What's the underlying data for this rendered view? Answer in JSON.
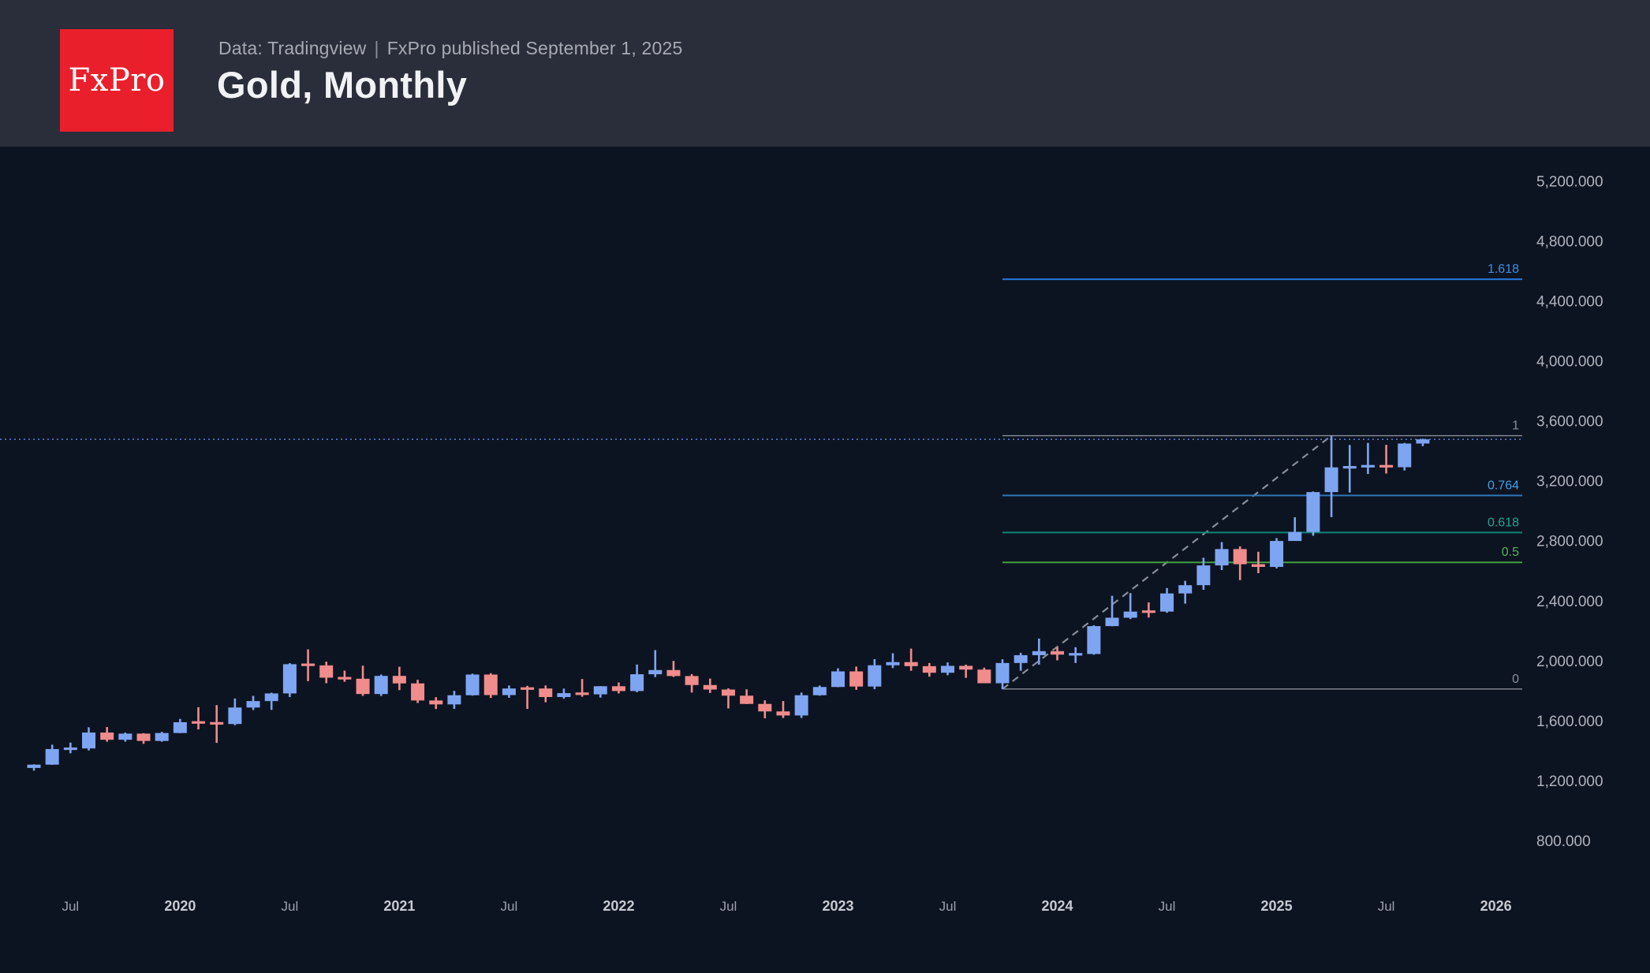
{
  "header": {
    "logo_text": "FxPro",
    "source_label": "Data: Tradingview",
    "separator": "|",
    "published_label": "FxPro published September 1, 2025",
    "title": "Gold, Monthly"
  },
  "chart_data": {
    "type": "candlestick",
    "symbol": "Gold",
    "timeframe": "Monthly",
    "title": "Gold, Monthly",
    "legend_position": "none",
    "grid": false,
    "colors": {
      "background": "#0d1421",
      "up_candle": "#7ea5f2",
      "down_candle": "#f08c8c",
      "y_tick_text": "#b0b3bc",
      "x_month_text": "#9aa0ab",
      "x_year_text": "#c7cad1",
      "trendline": "#8a8e98",
      "price_line": "#5577cc"
    },
    "y_axis": {
      "side": "right",
      "tick_step": 400,
      "ylim": [
        621,
        5428
      ],
      "ticks": [
        {
          "value": 5200,
          "label": "5,200.000"
        },
        {
          "value": 4800,
          "label": "4,800.000"
        },
        {
          "value": 4400,
          "label": "4,400.000"
        },
        {
          "value": 4000,
          "label": "4,000.000"
        },
        {
          "value": 3600,
          "label": "3,600.000"
        },
        {
          "value": 3200,
          "label": "3,200.000"
        },
        {
          "value": 2800,
          "label": "2,800.000"
        },
        {
          "value": 2400,
          "label": "2,400.000"
        },
        {
          "value": 2000,
          "label": "2,000.000"
        },
        {
          "value": 1600,
          "label": "1,600.000"
        },
        {
          "value": 1200,
          "label": "1,200.000"
        },
        {
          "value": 800,
          "label": "800.000"
        }
      ]
    },
    "x_axis": {
      "labels": [
        {
          "index": 2,
          "text": "Jul",
          "emphasis": false
        },
        {
          "index": 8,
          "text": "2020",
          "emphasis": true
        },
        {
          "index": 14,
          "text": "Jul",
          "emphasis": false
        },
        {
          "index": 20,
          "text": "2021",
          "emphasis": true
        },
        {
          "index": 26,
          "text": "Jul",
          "emphasis": false
        },
        {
          "index": 32,
          "text": "2022",
          "emphasis": true
        },
        {
          "index": 38,
          "text": "Jul",
          "emphasis": false
        },
        {
          "index": 44,
          "text": "2023",
          "emphasis": true
        },
        {
          "index": 50,
          "text": "Jul",
          "emphasis": false
        },
        {
          "index": 56,
          "text": "2024",
          "emphasis": true
        },
        {
          "index": 62,
          "text": "Jul",
          "emphasis": false
        },
        {
          "index": 68,
          "text": "2025",
          "emphasis": true
        },
        {
          "index": 74,
          "text": "Jul",
          "emphasis": false
        },
        {
          "index": 80,
          "text": "2026",
          "emphasis": true
        }
      ]
    },
    "candle_columns": [
      "month",
      "open",
      "high",
      "low",
      "close"
    ],
    "candles": [
      [
        "2019-05",
        1284,
        1308,
        1266,
        1306
      ],
      [
        "2019-06",
        1306,
        1439,
        1305,
        1410
      ],
      [
        "2019-07",
        1410,
        1453,
        1382,
        1414
      ],
      [
        "2019-08",
        1414,
        1555,
        1400,
        1520
      ],
      [
        "2019-09",
        1520,
        1557,
        1459,
        1472
      ],
      [
        "2019-10",
        1472,
        1520,
        1459,
        1513
      ],
      [
        "2019-11",
        1513,
        1516,
        1445,
        1464
      ],
      [
        "2019-12",
        1464,
        1525,
        1459,
        1517
      ],
      [
        "2020-01",
        1517,
        1611,
        1516,
        1589
      ],
      [
        "2020-02",
        1589,
        1689,
        1541,
        1586
      ],
      [
        "2020-03",
        1586,
        1703,
        1451,
        1577
      ],
      [
        "2020-04",
        1577,
        1747,
        1569,
        1687
      ],
      [
        "2020-05",
        1687,
        1765,
        1670,
        1730
      ],
      [
        "2020-06",
        1730,
        1786,
        1671,
        1781
      ],
      [
        "2020-07",
        1781,
        1983,
        1757,
        1976
      ],
      [
        "2020-08",
        1976,
        2075,
        1863,
        1968
      ],
      [
        "2020-09",
        1968,
        1993,
        1849,
        1886
      ],
      [
        "2020-10",
        1886,
        1933,
        1859,
        1879
      ],
      [
        "2020-11",
        1879,
        1966,
        1765,
        1777
      ],
      [
        "2020-12",
        1777,
        1907,
        1764,
        1898
      ],
      [
        "2021-01",
        1898,
        1959,
        1803,
        1848
      ],
      [
        "2021-02",
        1848,
        1872,
        1717,
        1734
      ],
      [
        "2021-03",
        1734,
        1756,
        1677,
        1708
      ],
      [
        "2021-04",
        1708,
        1798,
        1678,
        1769
      ],
      [
        "2021-05",
        1769,
        1913,
        1766,
        1907
      ],
      [
        "2021-06",
        1907,
        1916,
        1751,
        1770
      ],
      [
        "2021-07",
        1770,
        1834,
        1752,
        1814
      ],
      [
        "2021-08",
        1814,
        1832,
        1678,
        1813
      ],
      [
        "2021-09",
        1814,
        1834,
        1722,
        1757
      ],
      [
        "2021-10",
        1757,
        1813,
        1746,
        1783
      ],
      [
        "2021-11",
        1783,
        1877,
        1759,
        1775
      ],
      [
        "2021-12",
        1775,
        1830,
        1753,
        1829
      ],
      [
        "2022-01",
        1829,
        1854,
        1781,
        1797
      ],
      [
        "2022-02",
        1797,
        1974,
        1789,
        1909
      ],
      [
        "2022-03",
        1909,
        2070,
        1890,
        1937
      ],
      [
        "2022-04",
        1937,
        1998,
        1891,
        1897
      ],
      [
        "2022-05",
        1897,
        1910,
        1787,
        1837
      ],
      [
        "2022-06",
        1837,
        1880,
        1784,
        1807
      ],
      [
        "2022-07",
        1807,
        1815,
        1681,
        1766
      ],
      [
        "2022-08",
        1766,
        1808,
        1710,
        1711
      ],
      [
        "2022-09",
        1711,
        1735,
        1615,
        1661
      ],
      [
        "2022-10",
        1661,
        1730,
        1617,
        1634
      ],
      [
        "2022-11",
        1634,
        1787,
        1617,
        1769
      ],
      [
        "2022-12",
        1769,
        1834,
        1766,
        1824
      ],
      [
        "2023-01",
        1824,
        1949,
        1823,
        1928
      ],
      [
        "2023-02",
        1928,
        1960,
        1805,
        1827
      ],
      [
        "2023-03",
        1827,
        2010,
        1809,
        1969
      ],
      [
        "2023-04",
        1969,
        2049,
        1950,
        1990
      ],
      [
        "2023-05",
        1990,
        2080,
        1932,
        1963
      ],
      [
        "2023-06",
        1963,
        1984,
        1893,
        1919
      ],
      [
        "2023-07",
        1919,
        1988,
        1902,
        1965
      ],
      [
        "2023-08",
        1965,
        1973,
        1885,
        1940
      ],
      [
        "2023-09",
        1940,
        1953,
        1849,
        1849
      ],
      [
        "2023-10",
        1849,
        2009,
        1810,
        1984
      ],
      [
        "2023-11",
        1984,
        2052,
        1932,
        2036
      ],
      [
        "2023-12",
        2036,
        2147,
        1973,
        2063
      ],
      [
        "2024-01",
        2063,
        2088,
        2002,
        2040
      ],
      [
        "2024-02",
        2040,
        2089,
        1984,
        2044
      ],
      [
        "2024-03",
        2044,
        2236,
        2039,
        2230
      ],
      [
        "2024-04",
        2230,
        2432,
        2229,
        2286
      ],
      [
        "2024-05",
        2286,
        2450,
        2277,
        2327
      ],
      [
        "2024-06",
        2327,
        2388,
        2287,
        2326
      ],
      [
        "2024-07",
        2327,
        2484,
        2319,
        2448
      ],
      [
        "2024-08",
        2448,
        2532,
        2380,
        2503
      ],
      [
        "2024-09",
        2503,
        2686,
        2472,
        2635
      ],
      [
        "2024-10",
        2635,
        2790,
        2604,
        2744
      ],
      [
        "2024-11",
        2744,
        2762,
        2537,
        2643
      ],
      [
        "2024-12",
        2643,
        2726,
        2583,
        2625
      ],
      [
        "2025-01",
        2625,
        2817,
        2615,
        2798
      ],
      [
        "2025-02",
        2798,
        2956,
        2833,
        2858
      ],
      [
        "2025-03",
        2858,
        3128,
        2833,
        3124
      ],
      [
        "2025-04",
        3124,
        3500,
        2957,
        3289
      ],
      [
        "2025-05",
        3289,
        3438,
        3121,
        3290
      ],
      [
        "2025-06",
        3290,
        3452,
        3245,
        3303
      ],
      [
        "2025-07",
        3303,
        3439,
        3248,
        3290
      ],
      [
        "2025-08",
        3290,
        3452,
        3268,
        3448
      ],
      [
        "2025-09",
        3448,
        3480,
        3430,
        3476
      ]
    ],
    "fibonacci": {
      "anchor_low_month": "2023-10",
      "anchor_low_price": 1810.5,
      "anchor_high_month": "2025-04",
      "anchor_high_price": 3500.1,
      "levels": [
        {
          "label": "1.618",
          "value": 4544.2,
          "line_color": "#2676d9",
          "label_color": "#3c8fe6"
        },
        {
          "label": "1",
          "value": 3500.1,
          "line_color": "#898d97",
          "label_color": "#8c9099"
        },
        {
          "label": "0.764",
          "value": 3101.4,
          "line_color": "#2e76b9",
          "label_color": "#41a0e6"
        },
        {
          "label": "0.618",
          "value": 2854.6,
          "line_color": "#0f8578",
          "label_color": "#21a795"
        },
        {
          "label": "0.5",
          "value": 2655.3,
          "line_color": "#42a03e",
          "label_color": "#55b45a"
        },
        {
          "label": "0",
          "value": 1810.5,
          "line_color": "#898d97",
          "label_color": "#8c9099"
        }
      ]
    },
    "trendline": {
      "from_month": "2023-10",
      "from_value": 1810.5,
      "to_month": "2025-04",
      "to_value": 3500.1,
      "style": "dashed"
    },
    "price_line": {
      "value": 3476,
      "style": "dotted"
    }
  }
}
